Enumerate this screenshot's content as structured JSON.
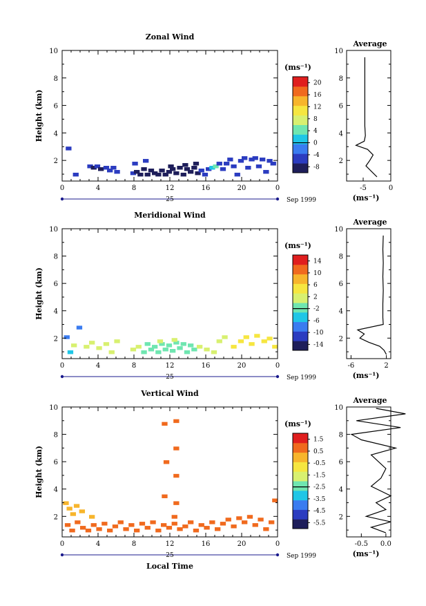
{
  "colors": {
    "scale": [
      "#1e1e5a",
      "#2b3cc0",
      "#3a7cf0",
      "#1fc6e6",
      "#6fe6b0",
      "#d8f070",
      "#f6e640",
      "#f7b52c",
      "#f06a1e",
      "#e01e1e"
    ]
  },
  "xaxis": {
    "ticks": [
      "0",
      "4",
      "8",
      "12",
      "16",
      "20",
      "0"
    ],
    "day_label": "25",
    "date_label": "Sep 1999",
    "label": "Local Time"
  },
  "ylabel": "Height (km)",
  "unit_label": "(ms⁻¹)",
  "avg_title": "Average",
  "avg_xlabel": "(ms⁻¹)",
  "chart_data": [
    {
      "type": "heatmap",
      "title": "Zonal Wind",
      "xlabel": "",
      "ylabel": "Height (km)",
      "xlim": [
        0,
        24
      ],
      "ylim": [
        0.5,
        10
      ],
      "y_ticks": [
        "2",
        "4",
        "6",
        "8",
        "10"
      ],
      "colorbar_ticks": [
        "20",
        "16",
        "12",
        "8",
        "4",
        "0",
        "-4",
        "-8"
      ],
      "colorbar_range": [
        -10,
        22
      ],
      "cells": [
        [
          0.6,
          2.9,
          -6
        ],
        [
          1.4,
          1.0,
          -6
        ],
        [
          3.0,
          1.6,
          -6
        ],
        [
          3.4,
          1.5,
          -8
        ],
        [
          3.8,
          1.6,
          -6
        ],
        [
          4.2,
          1.4,
          -8
        ],
        [
          4.8,
          1.5,
          -6
        ],
        [
          5.2,
          1.3,
          -6
        ],
        [
          5.6,
          1.5,
          -6
        ],
        [
          6.0,
          1.2,
          -6
        ],
        [
          7.8,
          1.1,
          -6
        ],
        [
          8.2,
          1.2,
          -8
        ],
        [
          8.6,
          1.0,
          -8
        ],
        [
          9.0,
          1.4,
          -8
        ],
        [
          9.4,
          1.0,
          -8
        ],
        [
          9.8,
          1.3,
          -8
        ],
        [
          10.2,
          1.1,
          -8
        ],
        [
          10.6,
          1.0,
          -8
        ],
        [
          11.0,
          1.3,
          -8
        ],
        [
          11.4,
          1.0,
          -8
        ],
        [
          11.8,
          1.2,
          -8
        ],
        [
          12.2,
          1.4,
          -8
        ],
        [
          12.6,
          1.1,
          -8
        ],
        [
          13.0,
          1.5,
          -8
        ],
        [
          13.4,
          1.0,
          -8
        ],
        [
          13.8,
          1.4,
          -8
        ],
        [
          14.2,
          1.2,
          -8
        ],
        [
          14.6,
          1.5,
          -8
        ],
        [
          15.0,
          1.1,
          -8
        ],
        [
          15.4,
          1.3,
          -6
        ],
        [
          15.8,
          1.0,
          -6
        ],
        [
          16.2,
          1.4,
          -6
        ],
        [
          16.6,
          1.5,
          2
        ],
        [
          17.0,
          1.6,
          4
        ],
        [
          17.4,
          1.8,
          -6
        ],
        [
          17.8,
          1.4,
          -6
        ],
        [
          18.2,
          1.8,
          -6
        ],
        [
          18.6,
          2.1,
          -6
        ],
        [
          19.0,
          1.6,
          -6
        ],
        [
          19.4,
          1.0,
          -6
        ],
        [
          19.8,
          2.0,
          -6
        ],
        [
          20.2,
          2.2,
          -6
        ],
        [
          20.6,
          1.5,
          -6
        ],
        [
          21.0,
          2.1,
          -6
        ],
        [
          21.4,
          2.2,
          -6
        ],
        [
          21.8,
          1.6,
          -6
        ],
        [
          22.2,
          2.1,
          -6
        ],
        [
          22.6,
          1.2,
          -6
        ],
        [
          23.0,
          2.0,
          -6
        ],
        [
          23.4,
          1.8,
          -6
        ],
        [
          8.0,
          1.8,
          -6
        ],
        [
          9.2,
          2.0,
          -6
        ],
        [
          12.0,
          1.6,
          -8
        ],
        [
          13.6,
          1.7,
          -8
        ],
        [
          14.8,
          1.8,
          -8
        ]
      ],
      "avg_x": [
        -2.5,
        -3.5,
        -4.5,
        -3.8,
        -3.2,
        -4.2,
        -6.3,
        -4.8,
        -4.6,
        -4.7,
        -4.7,
        -4.7,
        -4.7,
        -4.7,
        -4.7
      ],
      "avg_y": [
        0.8,
        1.2,
        1.6,
        2.0,
        2.4,
        2.8,
        3.1,
        3.4,
        3.8,
        4.5,
        5.5,
        6.5,
        7.5,
        8.5,
        9.5
      ],
      "avg_xlim": [
        -8,
        0
      ],
      "avg_ticks": [
        "-5",
        "0"
      ]
    },
    {
      "type": "heatmap",
      "title": "Meridional Wind",
      "xlabel": "",
      "ylabel": "Height (km)",
      "xlim": [
        0,
        24
      ],
      "ylim": [
        0.5,
        10
      ],
      "y_ticks": [
        "2",
        "4",
        "6",
        "8",
        "10"
      ],
      "colorbar_ticks": [
        "14",
        "10",
        "6",
        "2",
        "-2",
        "-6",
        "-10",
        "-14"
      ],
      "colorbar_range": [
        -16,
        16
      ],
      "cells": [
        [
          0.4,
          2.1,
          -8
        ],
        [
          0.8,
          1.0,
          -4
        ],
        [
          1.2,
          1.5,
          0
        ],
        [
          1.8,
          2.8,
          -8
        ],
        [
          2.6,
          1.4,
          0
        ],
        [
          3.2,
          1.7,
          0
        ],
        [
          4.0,
          1.3,
          0
        ],
        [
          4.8,
          1.6,
          0
        ],
        [
          5.4,
          1.0,
          0
        ],
        [
          6.0,
          1.8,
          0
        ],
        [
          7.8,
          1.2,
          0
        ],
        [
          8.4,
          1.4,
          0
        ],
        [
          9.0,
          1.0,
          -2
        ],
        [
          9.4,
          1.6,
          -2
        ],
        [
          9.8,
          1.2,
          -2
        ],
        [
          10.2,
          1.4,
          -2
        ],
        [
          10.6,
          1.0,
          -2
        ],
        [
          11.0,
          1.6,
          -2
        ],
        [
          11.4,
          1.2,
          -2
        ],
        [
          11.8,
          1.5,
          -2
        ],
        [
          12.2,
          1.1,
          -2
        ],
        [
          12.6,
          1.7,
          -2
        ],
        [
          13.0,
          1.3,
          -2
        ],
        [
          13.4,
          1.6,
          -2
        ],
        [
          13.8,
          1.0,
          -2
        ],
        [
          14.2,
          1.5,
          -2
        ],
        [
          14.6,
          1.2,
          -2
        ],
        [
          15.2,
          1.4,
          0
        ],
        [
          16.0,
          1.2,
          0
        ],
        [
          16.8,
          1.0,
          0
        ],
        [
          17.4,
          1.8,
          0
        ],
        [
          18.0,
          2.1,
          2
        ],
        [
          19.0,
          1.4,
          4
        ],
        [
          19.8,
          1.8,
          4
        ],
        [
          20.4,
          2.1,
          4
        ],
        [
          21.0,
          1.6,
          4
        ],
        [
          21.6,
          2.2,
          4
        ],
        [
          22.4,
          1.8,
          4
        ],
        [
          23.0,
          2.0,
          4
        ],
        [
          23.6,
          1.4,
          4
        ],
        [
          10.8,
          1.8,
          0
        ],
        [
          12.4,
          1.9,
          0
        ]
      ],
      "avg_x": [
        2.0,
        1.5,
        0.5,
        -2.0,
        -4.0,
        -3.0,
        -4.5,
        1.3,
        1.2,
        1.2,
        1.3,
        1.2,
        1.3,
        1.2,
        1.3
      ],
      "avg_y": [
        0.8,
        1.1,
        1.4,
        1.7,
        2.0,
        2.3,
        2.6,
        3.0,
        3.5,
        4.5,
        5.5,
        6.5,
        7.5,
        8.5,
        9.5
      ],
      "avg_xlim": [
        -7,
        3
      ],
      "avg_ticks": [
        "-6",
        "2"
      ]
    },
    {
      "type": "heatmap",
      "title": "Vertical Wind",
      "xlabel": "Local Time",
      "ylabel": "Height (km)",
      "xlim": [
        0,
        24
      ],
      "ylim": [
        0.5,
        10
      ],
      "y_ticks": [
        "2",
        "4",
        "6",
        "8",
        "10"
      ],
      "colorbar_ticks": [
        "1.5",
        "0.5",
        "-0.5",
        "-1.5",
        "-2.5",
        "-3.5",
        "-4.5",
        "-5.5"
      ],
      "colorbar_range": [
        -6,
        2
      ],
      "cells": [
        [
          0.3,
          3.0,
          0.3
        ],
        [
          0.7,
          2.6,
          0.3
        ],
        [
          1.1,
          2.2,
          0.3
        ],
        [
          1.5,
          2.8,
          0.3
        ],
        [
          2.1,
          2.4,
          0.3
        ],
        [
          3.2,
          2.0,
          0.3
        ],
        [
          0.5,
          1.4,
          0.5
        ],
        [
          1.0,
          1.0,
          0.5
        ],
        [
          1.6,
          1.6,
          0.5
        ],
        [
          2.2,
          1.2,
          0.5
        ],
        [
          2.8,
          1.0,
          0.5
        ],
        [
          3.4,
          1.4,
          0.5
        ],
        [
          4.0,
          1.1,
          0.5
        ],
        [
          4.6,
          1.5,
          0.5
        ],
        [
          5.2,
          1.0,
          0.5
        ],
        [
          5.8,
          1.3,
          0.5
        ],
        [
          6.4,
          1.6,
          0.5
        ],
        [
          7.0,
          1.1,
          0.5
        ],
        [
          7.6,
          1.4,
          0.5
        ],
        [
          8.2,
          1.0,
          0.5
        ],
        [
          8.8,
          1.5,
          0.5
        ],
        [
          9.4,
          1.2,
          0.5
        ],
        [
          10.0,
          1.6,
          0.5
        ],
        [
          10.6,
          1.0,
          0.5
        ],
        [
          11.2,
          1.4,
          0.5
        ],
        [
          11.8,
          1.2,
          0.5
        ],
        [
          12.4,
          1.5,
          0.5
        ],
        [
          13.0,
          1.1,
          0.5
        ],
        [
          13.6,
          1.3,
          0.5
        ],
        [
          14.2,
          1.6,
          0.5
        ],
        [
          14.8,
          1.0,
          0.5
        ],
        [
          15.4,
          1.4,
          0.5
        ],
        [
          16.0,
          1.2,
          0.5
        ],
        [
          16.6,
          1.6,
          0.5
        ],
        [
          17.2,
          1.1,
          0.5
        ],
        [
          17.8,
          1.5,
          0.5
        ],
        [
          18.4,
          1.8,
          0.5
        ],
        [
          19.0,
          1.3,
          0.5
        ],
        [
          19.6,
          1.9,
          0.5
        ],
        [
          20.2,
          1.6,
          0.5
        ],
        [
          20.8,
          2.0,
          0.5
        ],
        [
          21.4,
          1.4,
          0.5
        ],
        [
          22.0,
          1.8,
          0.5
        ],
        [
          22.6,
          1.1,
          0.5
        ],
        [
          23.2,
          1.6,
          0.5
        ],
        [
          23.6,
          3.2,
          0.5
        ],
        [
          11.3,
          8.8,
          0.5
        ],
        [
          11.5,
          6.0,
          0.5
        ],
        [
          11.3,
          3.5,
          0.5
        ],
        [
          12.6,
          9.0,
          0.5
        ],
        [
          12.6,
          7.0,
          0.5
        ],
        [
          12.6,
          5.0,
          0.5
        ],
        [
          12.6,
          3.0,
          0.5
        ],
        [
          12.4,
          2.0,
          0.5
        ]
      ],
      "avg_x": [
        0.0,
        -0.3,
        0.1,
        -0.4,
        0.0,
        -0.2,
        0.1,
        -0.3,
        -0.1,
        0.0,
        -0.3,
        0.2,
        -0.5,
        -0.7,
        0.3,
        -0.6,
        0.4,
        -0.2
      ],
      "avg_y": [
        0.8,
        1.2,
        1.6,
        2.0,
        2.5,
        3.0,
        3.5,
        4.2,
        4.8,
        5.5,
        6.5,
        7.0,
        7.6,
        8.0,
        8.5,
        9.0,
        9.5,
        9.9
      ],
      "avg_xlim": [
        -0.8,
        0.1
      ],
      "avg_ticks": [
        "-0.5",
        "0.0"
      ]
    }
  ]
}
